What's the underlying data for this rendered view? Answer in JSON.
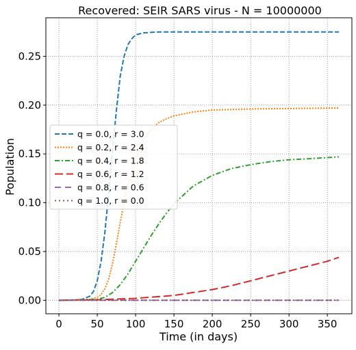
{
  "chart_data": {
    "type": "line",
    "title": "Recovered: SEIR SARS virus -  N = 10000000",
    "xlabel": "Time (in days)",
    "ylabel": "Population",
    "xlim": [
      -17,
      382
    ],
    "ylim": [
      -0.0138,
      0.2895
    ],
    "xticks": [
      0,
      50,
      100,
      150,
      200,
      250,
      300,
      350
    ],
    "yticks": [
      0.0,
      0.05,
      0.1,
      0.15,
      0.2,
      0.25
    ],
    "xtick_labels": [
      "0",
      "50",
      "100",
      "150",
      "200",
      "250",
      "300",
      "350"
    ],
    "ytick_labels": [
      "0.00",
      "0.05",
      "0.10",
      "0.15",
      "0.20",
      "0.25"
    ],
    "grid": true,
    "legend_position": "center-left",
    "series": [
      {
        "name": "q = 0.0, r = 3.0",
        "color": "#1f77b4",
        "style": "dashed",
        "x": [
          0,
          20,
          30,
          40,
          45,
          50,
          55,
          60,
          65,
          70,
          75,
          80,
          85,
          90,
          95,
          100,
          110,
          120,
          130,
          150,
          200,
          250,
          300,
          365
        ],
        "y": [
          0,
          0.0002,
          0.001,
          0.004,
          0.009,
          0.02,
          0.04,
          0.07,
          0.11,
          0.155,
          0.195,
          0.23,
          0.25,
          0.262,
          0.268,
          0.272,
          0.274,
          0.2745,
          0.275,
          0.275,
          0.275,
          0.275,
          0.275,
          0.275
        ]
      },
      {
        "name": "q = 0.2, r = 2.4",
        "color": "#ff7f0e",
        "style": "dotted",
        "x": [
          0,
          40,
          50,
          55,
          60,
          65,
          70,
          75,
          80,
          85,
          90,
          100,
          110,
          120,
          130,
          140,
          150,
          175,
          200,
          250,
          300,
          365
        ],
        "y": [
          0,
          0.001,
          0.003,
          0.006,
          0.012,
          0.022,
          0.038,
          0.058,
          0.08,
          0.1,
          0.118,
          0.146,
          0.164,
          0.175,
          0.182,
          0.186,
          0.189,
          0.193,
          0.195,
          0.196,
          0.1965,
          0.197
        ]
      },
      {
        "name": "q = 0.4, r = 1.8",
        "color": "#2ca02c",
        "style": "dashdot",
        "x": [
          0,
          50,
          60,
          70,
          80,
          90,
          100,
          110,
          120,
          130,
          140,
          150,
          175,
          200,
          225,
          250,
          275,
          300,
          325,
          365
        ],
        "y": [
          0,
          0.001,
          0.003,
          0.008,
          0.016,
          0.027,
          0.04,
          0.053,
          0.066,
          0.078,
          0.089,
          0.099,
          0.117,
          0.128,
          0.135,
          0.139,
          0.142,
          0.144,
          0.145,
          0.147
        ]
      },
      {
        "name": "q = 0.6, r = 1.2",
        "color": "#d62728",
        "style": "longdash",
        "x": [
          0,
          50,
          100,
          150,
          200,
          225,
          250,
          275,
          300,
          325,
          350,
          365
        ],
        "y": [
          0,
          0.0005,
          0.002,
          0.005,
          0.011,
          0.015,
          0.02,
          0.025,
          0.03,
          0.035,
          0.04,
          0.044
        ]
      },
      {
        "name": "q = 0.8, r = 0.6",
        "color": "#9467bd",
        "style": "dashed-coarse",
        "x": [
          0,
          365
        ],
        "y": [
          0,
          0
        ]
      },
      {
        "name": "q = 1.0, r = 0.0",
        "color": "#8c564b",
        "style": "dotted-coarse",
        "x": [
          0,
          365
        ],
        "y": [
          0,
          0
        ]
      }
    ]
  }
}
